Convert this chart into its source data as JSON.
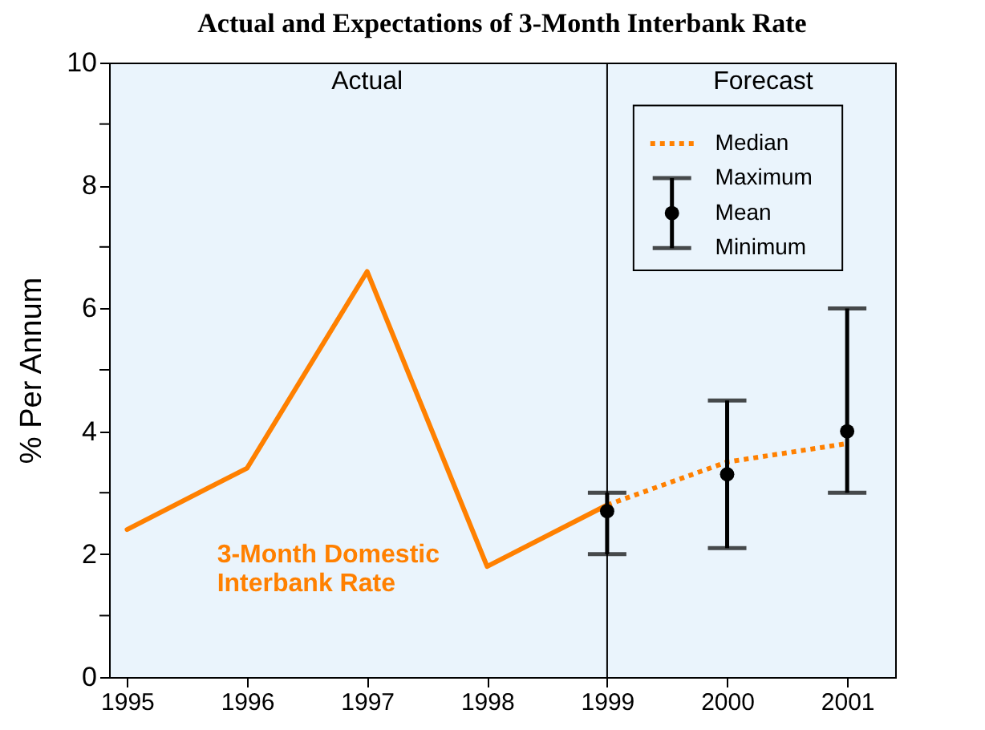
{
  "chart_data": {
    "type": "line",
    "title": "Actual and Expectations of 3-Month Interbank Rate",
    "ylabel": "% Per Annum",
    "x": [
      1995,
      1996,
      1997,
      1998,
      1999
    ],
    "series": [
      {
        "name": "3-Month Domestic Interbank Rate",
        "type": "line",
        "color": "#ff8000",
        "line_style": "solid",
        "values": [
          2.4,
          3.4,
          6.6,
          1.8,
          2.8
        ]
      },
      {
        "name": "Median",
        "type": "line",
        "color": "#ff8000",
        "line_style": "dotted",
        "x": [
          1999,
          2000,
          2001
        ],
        "values": [
          2.8,
          3.5,
          3.8
        ]
      },
      {
        "name": "Mean",
        "type": "scatter",
        "color": "#000000",
        "marker": "circle",
        "x": [
          1999,
          2000,
          2001
        ],
        "values": [
          2.7,
          3.3,
          4.0
        ],
        "errors": [
          [
            2.0,
            3.0
          ],
          [
            2.1,
            4.5
          ],
          [
            3.0,
            6.0
          ]
        ]
      }
    ],
    "xlim": [
      1994.85,
      2001.4
    ],
    "xticks": [
      1995,
      1996,
      1997,
      1998,
      1999,
      2000,
      2001
    ],
    "ylim": [
      0,
      10
    ],
    "yticks": [
      0,
      {
        "value": 1,
        "label": null
      },
      2,
      {
        "value": 3,
        "label": null
      },
      4,
      {
        "value": 5,
        "label": null
      },
      6,
      {
        "value": 7,
        "label": null
      },
      8,
      {
        "value": 9,
        "label": null
      },
      10
    ],
    "ref_lines": [
      {
        "axis": "x",
        "value": 1999,
        "color": "#000000"
      }
    ],
    "annotations": [
      "Actual",
      "Forecast",
      "Maximum",
      "Minimum"
    ],
    "legend": "top right"
  }
}
